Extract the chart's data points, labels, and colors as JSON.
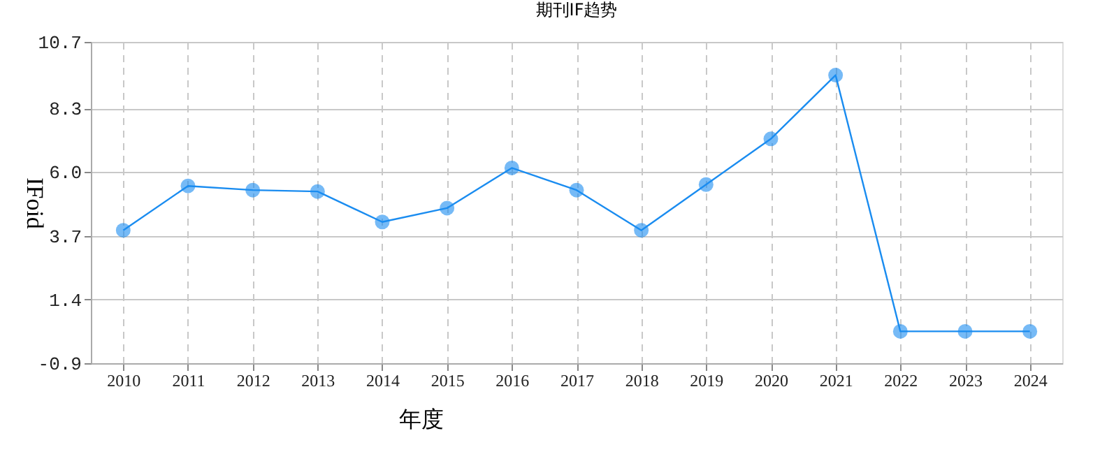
{
  "chart_data": {
    "type": "line",
    "title": "期刊IF趋势",
    "xlabel": "年度",
    "ylabel": "IFoid",
    "categories": [
      "2010",
      "2011",
      "2012",
      "2013",
      "2014",
      "2015",
      "2016",
      "2017",
      "2018",
      "2019",
      "2020",
      "2021",
      "2022",
      "2023",
      "2024"
    ],
    "series": [
      {
        "color": "#1a8cf0",
        "values": [
          3.9,
          5.5,
          5.35,
          5.3,
          4.2,
          4.7,
          6.15,
          5.35,
          3.9,
          5.55,
          7.2,
          9.5,
          0.25,
          0.25,
          0.25
        ]
      }
    ],
    "ylim": [
      -0.9,
      10.7
    ],
    "yticks": [
      -0.9,
      1.4,
      3.7,
      {
        "value": 6.0,
        "label": "6.0"
      },
      8.3,
      10.7
    ],
    "grid": true,
    "marker": "circle",
    "line_style": "solid"
  }
}
